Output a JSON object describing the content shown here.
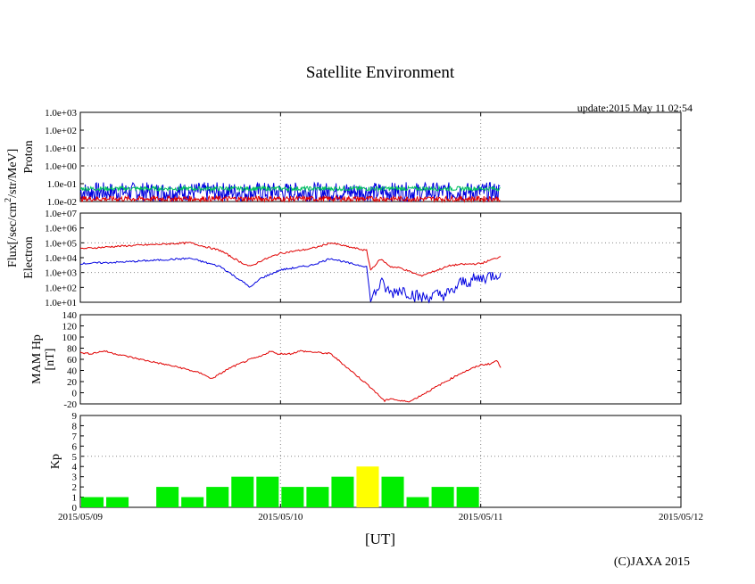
{
  "title": "Satellite Environment",
  "update_text": "update:2015 May 11 02:54",
  "copyright": "(C)JAXA 2015",
  "x_axis_label": "[UT]",
  "x_ticks": [
    "2015/05/09",
    "2015/05/10",
    "2015/05/11",
    "2015/05/12"
  ],
  "flux_unit_label": "Flux[/sec/cm",
  "flux_unit_sup": "2",
  "flux_unit_tail": "/str/MeV]",
  "colors": {
    "red": "#e00000",
    "blue": "#0000e0",
    "green": "#00c060",
    "kp_normal": "#00ee00",
    "kp_high": "#ffff00",
    "grid": "#888888"
  },
  "chart_data": [
    {
      "type": "line",
      "panel": "proton",
      "ylabel": "Proton",
      "y_scale": "log",
      "ylim": [
        0.01,
        1000
      ],
      "y_ticks": [
        "1.0e-02",
        "1.0e-01",
        "1.0e+00",
        "1.0e+01",
        "1.0e+02",
        "1.0e+03"
      ],
      "x_range_days": [
        0,
        3
      ],
      "series": [
        {
          "color": "#0000e0",
          "noisy_band": [
            0.01,
            0.12
          ],
          "x": [
            0.0,
            2.1
          ]
        },
        {
          "color": "#00c060",
          "noisy_band": [
            0.04,
            0.07
          ],
          "x": [
            0.0,
            2.1
          ]
        },
        {
          "color": "#e00000",
          "noisy_band": [
            0.01,
            0.02
          ],
          "x": [
            0.0,
            2.1
          ]
        }
      ]
    },
    {
      "type": "line",
      "panel": "electron",
      "ylabel": "Electron",
      "y_scale": "log",
      "ylim": [
        10,
        10000000
      ],
      "y_ticks": [
        "1.0e+01",
        "1.0e+02",
        "1.0e+03",
        "1.0e+04",
        "1.0e+05",
        "1.0e+06",
        "1.0e+07"
      ],
      "series": [
        {
          "color": "#e00000",
          "x": [
            0.0,
            0.2,
            0.4,
            0.55,
            0.7,
            0.8,
            0.85,
            0.9,
            1.0,
            1.15,
            1.2,
            1.25,
            1.35,
            1.43,
            1.45,
            1.5,
            1.55,
            1.6,
            1.7,
            1.85,
            1.9,
            2.0,
            2.1
          ],
          "values": [
            40000,
            60000,
            80000,
            100000,
            30000,
            5000,
            2500,
            6000,
            20000,
            40000,
            60000,
            100000,
            50000,
            30000,
            1500,
            8000,
            2500,
            2000,
            600,
            3000,
            3500,
            4000,
            12000
          ]
        },
        {
          "color": "#0000e0",
          "x": [
            0.0,
            0.2,
            0.4,
            0.55,
            0.7,
            0.8,
            0.85,
            0.9,
            1.0,
            1.15,
            1.2,
            1.25,
            1.35,
            1.43,
            1.45,
            1.5,
            1.55,
            1.6,
            1.7,
            1.85,
            1.9,
            2.0,
            2.1
          ],
          "values": [
            4000,
            5000,
            7000,
            9000,
            2500,
            300,
            100,
            400,
            1500,
            3000,
            5000,
            9000,
            4000,
            2500,
            12,
            200,
            40,
            80,
            20,
            40,
            200,
            400,
            1000
          ]
        }
      ]
    },
    {
      "type": "line",
      "panel": "mam",
      "ylabel": "MAM Hp",
      "ylabel2": "[nT]",
      "ylim": [
        -20,
        140
      ],
      "y_ticks": [
        "-20",
        "0",
        "20",
        "40",
        "60",
        "80",
        "100",
        "120",
        "140"
      ],
      "series": [
        {
          "color": "#e00000",
          "x": [
            0.0,
            0.05,
            0.12,
            0.15,
            0.3,
            0.5,
            0.62,
            0.65,
            0.68,
            0.75,
            0.85,
            0.9,
            0.95,
            0.98,
            1.05,
            1.1,
            1.25,
            1.35,
            1.45,
            1.52,
            1.55,
            1.6,
            1.65,
            1.75,
            1.9,
            2.0,
            2.05,
            2.08,
            2.1
          ],
          "values": [
            72,
            70,
            75,
            72,
            60,
            45,
            33,
            25,
            30,
            45,
            60,
            65,
            75,
            70,
            70,
            75,
            70,
            40,
            10,
            -15,
            -10,
            -15,
            -15,
            5,
            35,
            50,
            52,
            58,
            45
          ]
        }
      ]
    },
    {
      "type": "bar",
      "panel": "kp",
      "ylabel": "Kp",
      "ylim": [
        0,
        9
      ],
      "y_ticks": [
        "0",
        "1",
        "2",
        "3",
        "4",
        "5",
        "6",
        "7",
        "8",
        "9"
      ],
      "bin_hours": 3,
      "values": [
        1,
        1,
        0,
        2,
        1,
        2,
        3,
        3,
        2,
        2,
        3,
        4,
        3,
        1,
        2,
        2
      ],
      "threshold": 5
    }
  ]
}
